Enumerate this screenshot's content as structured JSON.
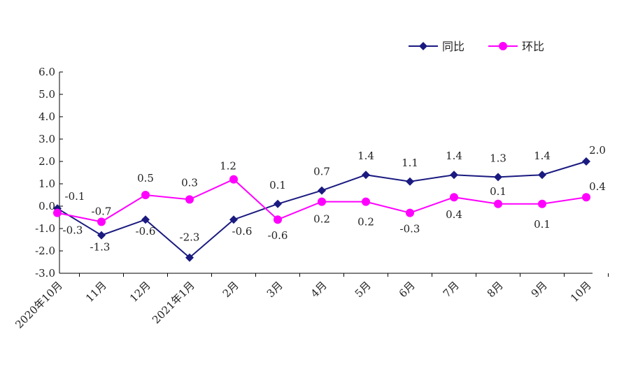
{
  "chart_data": {
    "type": "line",
    "categories": [
      "2020年10月",
      "11月",
      "12月",
      "2021年1月",
      "2月",
      "3月",
      "4月",
      "5月",
      "6月",
      "7月",
      "8月",
      "9月",
      "10月"
    ],
    "series": [
      {
        "name": "同比",
        "color": "#1a1a80",
        "marker": "diamond",
        "values": [
          -0.1,
          -1.3,
          -0.6,
          -2.3,
          -0.6,
          0.1,
          0.7,
          1.4,
          1.1,
          1.4,
          1.3,
          1.4,
          2.0
        ],
        "labels": [
          "-0.1",
          "-1.3",
          "-0.6",
          "-2.3",
          "-0.6",
          "0.1",
          "0.7",
          "1.4",
          "1.1",
          "1.4",
          "1.3",
          "1.4",
          "2.0"
        ]
      },
      {
        "name": "环比",
        "color": "#ff00ff",
        "marker": "circle",
        "values": [
          -0.3,
          -0.7,
          0.5,
          0.3,
          1.2,
          -0.6,
          0.2,
          0.2,
          -0.3,
          0.4,
          0.1,
          0.1,
          0.4
        ],
        "labels": [
          "-0.3",
          "-0.7",
          "0.5",
          "0.3",
          "1.2",
          "-0.6",
          "0.2",
          "0.2",
          "-0.3",
          "0.4",
          "0.1",
          "0.1",
          "0.4"
        ]
      }
    ],
    "yticks": [
      "-3.0",
      "-2.0",
      "-1.0",
      "0.0",
      "1.0",
      "2.0",
      "3.0",
      "4.0",
      "5.0",
      "6.0"
    ],
    "ylim": [
      -3.0,
      6.0
    ],
    "grid": false,
    "legend": "top-right",
    "title": "",
    "xlabel": "",
    "ylabel": ""
  }
}
